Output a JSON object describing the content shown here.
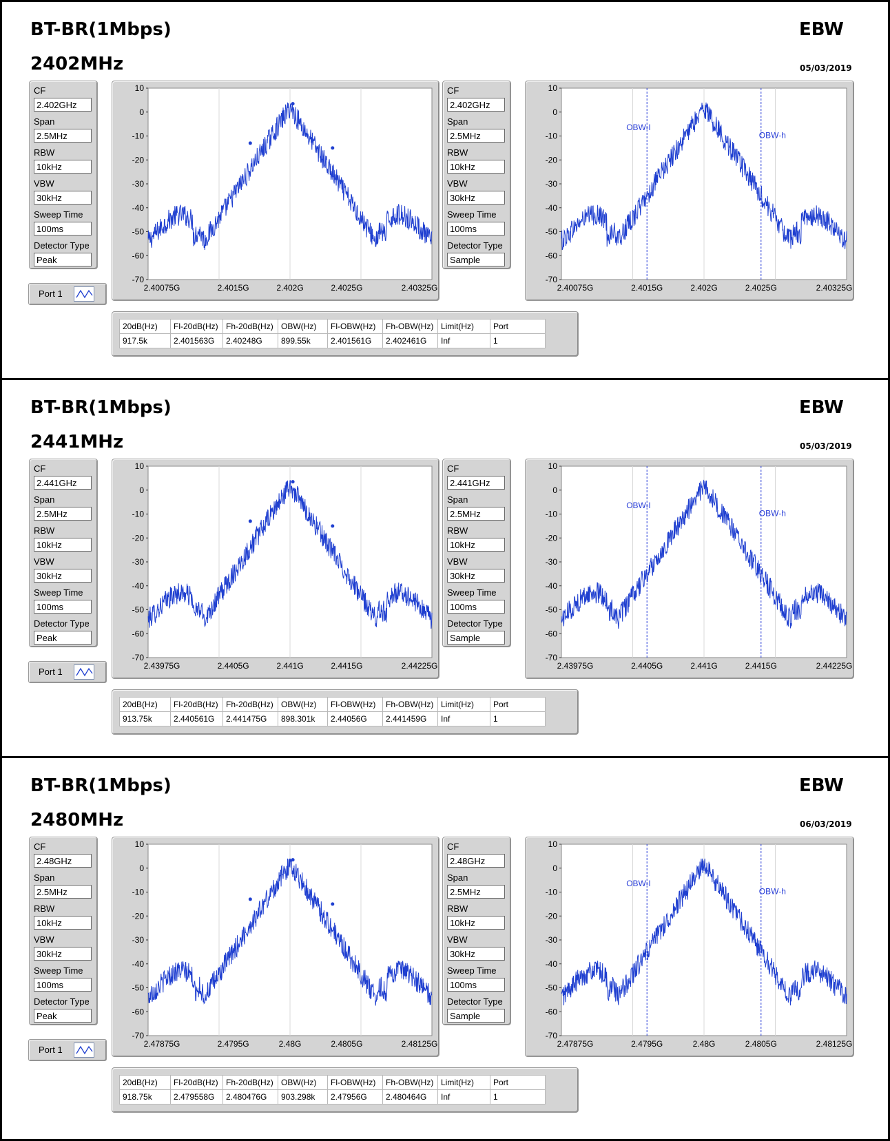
{
  "sections": [
    {
      "title": "BT-BR(1Mbps)",
      "label": "EBW",
      "freq": "2402MHz",
      "date": "05/03/2019",
      "left_settings": {
        "items": [
          {
            "label": "CF",
            "value": "2.402GHz"
          },
          {
            "label": "Span",
            "value": "2.5MHz"
          },
          {
            "label": "RBW",
            "value": "10kHz"
          },
          {
            "label": "VBW",
            "value": "30kHz"
          },
          {
            "label": "Sweep Time",
            "value": "100ms"
          },
          {
            "label": "Detector Type",
            "value": "Peak"
          }
        ]
      },
      "right_settings": {
        "items": [
          {
            "label": "CF",
            "value": "2.402GHz"
          },
          {
            "label": "Span",
            "value": "2.5MHz"
          },
          {
            "label": "RBW",
            "value": "10kHz"
          },
          {
            "label": "VBW",
            "value": "30kHz"
          },
          {
            "label": "Sweep Time",
            "value": "100ms"
          },
          {
            "label": "Detector Type",
            "value": "Sample"
          }
        ]
      },
      "port_label": "Port 1",
      "left_chart": {
        "x_ticks": [
          "2.40075G",
          "2.4015G",
          "2.402G",
          "2.4025G",
          "2.40325G"
        ],
        "y_ticks": [
          "10",
          "0",
          "-10",
          "-20",
          "-30",
          "-40",
          "-50",
          "-60",
          "-70"
        ]
      },
      "right_chart": {
        "x_ticks": [
          "2.40075G",
          "2.4015G",
          "2.402G",
          "2.4025G",
          "2.40325G"
        ],
        "y_ticks": [
          "10",
          "0",
          "-10",
          "-20",
          "-30",
          "-40",
          "-50",
          "-60",
          "-70"
        ],
        "marker_low": "OBW-l",
        "marker_high": "OBW-h"
      },
      "table": {
        "headers": [
          "20dB(Hz)",
          "Fl-20dB(Hz)",
          "Fh-20dB(Hz)",
          "OBW(Hz)",
          "Fl-OBW(Hz)",
          "Fh-OBW(Hz)",
          "Limit(Hz)",
          "Port"
        ],
        "row": [
          "917.5k",
          "2.401563G",
          "2.40248G",
          "899.55k",
          "2.401561G",
          "2.402461G",
          "Inf",
          "1"
        ]
      }
    },
    {
      "title": "BT-BR(1Mbps)",
      "label": "EBW",
      "freq": "2441MHz",
      "date": "05/03/2019",
      "left_settings": {
        "items": [
          {
            "label": "CF",
            "value": "2.441GHz"
          },
          {
            "label": "Span",
            "value": "2.5MHz"
          },
          {
            "label": "RBW",
            "value": "10kHz"
          },
          {
            "label": "VBW",
            "value": "30kHz"
          },
          {
            "label": "Sweep Time",
            "value": "100ms"
          },
          {
            "label": "Detector Type",
            "value": "Peak"
          }
        ]
      },
      "right_settings": {
        "items": [
          {
            "label": "CF",
            "value": "2.441GHz"
          },
          {
            "label": "Span",
            "value": "2.5MHz"
          },
          {
            "label": "RBW",
            "value": "10kHz"
          },
          {
            "label": "VBW",
            "value": "30kHz"
          },
          {
            "label": "Sweep Time",
            "value": "100ms"
          },
          {
            "label": "Detector Type",
            "value": "Sample"
          }
        ]
      },
      "port_label": "Port 1",
      "left_chart": {
        "x_ticks": [
          "2.43975G",
          "2.4405G",
          "2.441G",
          "2.4415G",
          "2.44225G"
        ],
        "y_ticks": [
          "10",
          "0",
          "-10",
          "-20",
          "-30",
          "-40",
          "-50",
          "-60",
          "-70"
        ]
      },
      "right_chart": {
        "x_ticks": [
          "2.43975G",
          "2.4405G",
          "2.441G",
          "2.4415G",
          "2.44225G"
        ],
        "y_ticks": [
          "10",
          "0",
          "-10",
          "-20",
          "-30",
          "-40",
          "-50",
          "-60",
          "-70"
        ],
        "marker_low": "OBW-l",
        "marker_high": "OBW-h"
      },
      "table": {
        "headers": [
          "20dB(Hz)",
          "Fl-20dB(Hz)",
          "Fh-20dB(Hz)",
          "OBW(Hz)",
          "Fl-OBW(Hz)",
          "Fh-OBW(Hz)",
          "Limit(Hz)",
          "Port"
        ],
        "row": [
          "913.75k",
          "2.440561G",
          "2.441475G",
          "898.301k",
          "2.44056G",
          "2.441459G",
          "Inf",
          "1"
        ]
      }
    },
    {
      "title": "BT-BR(1Mbps)",
      "label": "EBW",
      "freq": "2480MHz",
      "date": "06/03/2019",
      "left_settings": {
        "items": [
          {
            "label": "CF",
            "value": "2.48GHz"
          },
          {
            "label": "Span",
            "value": "2.5MHz"
          },
          {
            "label": "RBW",
            "value": "10kHz"
          },
          {
            "label": "VBW",
            "value": "30kHz"
          },
          {
            "label": "Sweep Time",
            "value": "100ms"
          },
          {
            "label": "Detector Type",
            "value": "Peak"
          }
        ]
      },
      "right_settings": {
        "items": [
          {
            "label": "CF",
            "value": "2.48GHz"
          },
          {
            "label": "Span",
            "value": "2.5MHz"
          },
          {
            "label": "RBW",
            "value": "10kHz"
          },
          {
            "label": "VBW",
            "value": "30kHz"
          },
          {
            "label": "Sweep Time",
            "value": "100ms"
          },
          {
            "label": "Detector Type",
            "value": "Sample"
          }
        ]
      },
      "port_label": "Port 1",
      "left_chart": {
        "x_ticks": [
          "2.47875G",
          "2.4795G",
          "2.48G",
          "2.4805G",
          "2.48125G"
        ],
        "y_ticks": [
          "10",
          "0",
          "-10",
          "-20",
          "-30",
          "-40",
          "-50",
          "-60",
          "-70"
        ]
      },
      "right_chart": {
        "x_ticks": [
          "2.47875G",
          "2.4795G",
          "2.48G",
          "2.4805G",
          "2.48125G"
        ],
        "y_ticks": [
          "10",
          "0",
          "-10",
          "-20",
          "-30",
          "-40",
          "-50",
          "-60",
          "-70"
        ],
        "marker_low": "OBW-l",
        "marker_high": "OBW-h"
      },
      "table": {
        "headers": [
          "20dB(Hz)",
          "Fl-20dB(Hz)",
          "Fh-20dB(Hz)",
          "OBW(Hz)",
          "Fl-OBW(Hz)",
          "Fh-OBW(Hz)",
          "Limit(Hz)",
          "Port"
        ],
        "row": [
          "918.75k",
          "2.479558G",
          "2.480476G",
          "903.298k",
          "2.47956G",
          "2.480464G",
          "Inf",
          "1"
        ]
      }
    }
  ],
  "colors": {
    "trace": "#1f3fd0",
    "marker_line": "#2a3fd8",
    "panel_bg": "#d4d4d4",
    "plot_bg": "#ffffff"
  }
}
